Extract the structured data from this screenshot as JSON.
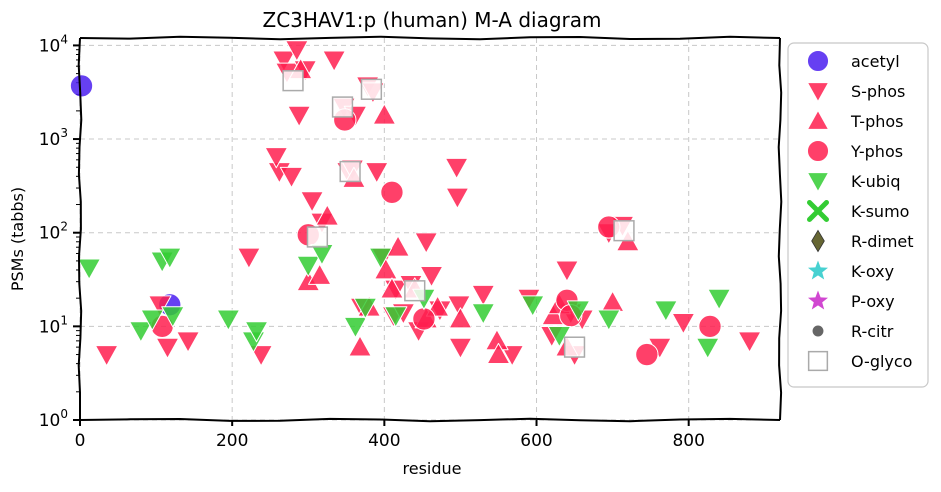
{
  "chart_data": {
    "type": "scatter",
    "title": "ZC3HAV1:p (human) M-A diagram",
    "xlabel": "residue",
    "ylabel": "PSMs (tabbs)",
    "xlim": [
      0,
      920
    ],
    "ylim": [
      1,
      12000
    ],
    "yscale": "log",
    "grid": true,
    "legend_position": "outside-right",
    "x_ticks": [
      {
        "value": 0,
        "label": "0"
      },
      {
        "value": 200,
        "label": "200"
      },
      {
        "value": 400,
        "label": "400"
      },
      {
        "value": 600,
        "label": "600"
      },
      {
        "value": 800,
        "label": "800"
      }
    ],
    "y_ticks": [
      {
        "value": 1,
        "base": "10",
        "exp": "0"
      },
      {
        "value": 10,
        "base": "10",
        "exp": "1"
      },
      {
        "value": 100,
        "base": "10",
        "exp": "2"
      },
      {
        "value": 1000,
        "base": "10",
        "exp": "3"
      },
      {
        "value": 10000,
        "base": "10",
        "exp": "4"
      }
    ],
    "series": [
      {
        "name": "acetyl",
        "marker": "circle",
        "color": "#4b1ef0",
        "points": [
          [
            2,
            3700
          ],
          [
            118,
            17
          ]
        ]
      },
      {
        "name": "S-phos",
        "marker": "triangle-down",
        "color": "#ff1f4f",
        "points": [
          [
            35,
            5
          ],
          [
            105,
            17
          ],
          [
            115,
            6
          ],
          [
            142,
            7
          ],
          [
            222,
            55
          ],
          [
            238,
            5
          ],
          [
            262,
            450
          ],
          [
            258,
            650
          ],
          [
            268,
            7000
          ],
          [
            272,
            5200
          ],
          [
            278,
            400
          ],
          [
            285,
            9000
          ],
          [
            288,
            1800
          ],
          [
            296,
            5500
          ],
          [
            305,
            220
          ],
          [
            318,
            130
          ],
          [
            334,
            7000
          ],
          [
            347,
            2200
          ],
          [
            352,
            450
          ],
          [
            358,
            480
          ],
          [
            362,
            1800
          ],
          [
            370,
            16
          ],
          [
            378,
            3700
          ],
          [
            385,
            3200
          ],
          [
            390,
            450
          ],
          [
            398,
            55
          ],
          [
            412,
            13
          ],
          [
            415,
            25
          ],
          [
            425,
            14
          ],
          [
            435,
            28
          ],
          [
            445,
            9
          ],
          [
            455,
            80
          ],
          [
            462,
            35
          ],
          [
            473,
            15
          ],
          [
            495,
            500
          ],
          [
            496,
            240
          ],
          [
            498,
            17
          ],
          [
            500,
            6
          ],
          [
            530,
            22
          ],
          [
            568,
            5
          ],
          [
            590,
            20
          ],
          [
            620,
            8
          ],
          [
            640,
            40
          ],
          [
            645,
            14
          ],
          [
            650,
            5
          ],
          [
            660,
            12
          ],
          [
            695,
            100
          ],
          [
            713,
            120
          ],
          [
            762,
            6
          ],
          [
            793,
            11
          ],
          [
            880,
            7
          ]
        ]
      },
      {
        "name": "T-phos",
        "marker": "triangle-up",
        "color": "#ff1f4f",
        "points": [
          [
            290,
            5500
          ],
          [
            300,
            30
          ],
          [
            315,
            35
          ],
          [
            325,
            150
          ],
          [
            360,
            380
          ],
          [
            368,
            6
          ],
          [
            380,
            16
          ],
          [
            400,
            1800
          ],
          [
            402,
            40
          ],
          [
            410,
            25
          ],
          [
            418,
            70
          ],
          [
            440,
            25
          ],
          [
            455,
            12
          ],
          [
            470,
            16
          ],
          [
            500,
            12
          ],
          [
            548,
            7
          ],
          [
            550,
            5
          ],
          [
            622,
            13
          ],
          [
            630,
            17
          ],
          [
            640,
            6
          ],
          [
            700,
            18
          ],
          [
            720,
            80
          ]
        ]
      },
      {
        "name": "Y-phos",
        "marker": "circle",
        "color": "#ff1f4f",
        "points": [
          [
            108,
            10
          ],
          [
            300,
            95
          ],
          [
            348,
            1600
          ],
          [
            410,
            270
          ],
          [
            452,
            12
          ],
          [
            640,
            19
          ],
          [
            645,
            13
          ],
          [
            695,
            115
          ],
          [
            745,
            5
          ],
          [
            828,
            10
          ]
        ]
      },
      {
        "name": "K-ubiq",
        "marker": "triangle-down",
        "color": "#33cc33",
        "points": [
          [
            12,
            42
          ],
          [
            80,
            9
          ],
          [
            95,
            12
          ],
          [
            108,
            50
          ],
          [
            118,
            55
          ],
          [
            122,
            13
          ],
          [
            195,
            12
          ],
          [
            228,
            7
          ],
          [
            232,
            9
          ],
          [
            300,
            45
          ],
          [
            318,
            60
          ],
          [
            362,
            10
          ],
          [
            375,
            16
          ],
          [
            395,
            55
          ],
          [
            415,
            13
          ],
          [
            452,
            20
          ],
          [
            530,
            14
          ],
          [
            595,
            17
          ],
          [
            630,
            8
          ],
          [
            655,
            15
          ],
          [
            695,
            12
          ],
          [
            770,
            15
          ],
          [
            825,
            6
          ],
          [
            840,
            20
          ]
        ]
      },
      {
        "name": "K-sumo",
        "marker": "x",
        "color": "#33cc33",
        "points": []
      },
      {
        "name": "R-dimet",
        "marker": "diamond",
        "color": "#666633",
        "points": []
      },
      {
        "name": "K-oxy",
        "marker": "star",
        "color": "#33cccc",
        "points": []
      },
      {
        "name": "P-oxy",
        "marker": "star",
        "color": "#cc33cc",
        "points": []
      },
      {
        "name": "R-citr",
        "marker": "dot",
        "color": "#666666",
        "points": []
      },
      {
        "name": "O-glyco",
        "marker": "square-open",
        "color": "#aaaaaa",
        "points": [
          [
            280,
            4200
          ],
          [
            312,
            90
          ],
          [
            345,
            2200
          ],
          [
            355,
            450
          ],
          [
            383,
            3400
          ],
          [
            440,
            24
          ],
          [
            650,
            6
          ],
          [
            715,
            105
          ]
        ]
      }
    ]
  }
}
